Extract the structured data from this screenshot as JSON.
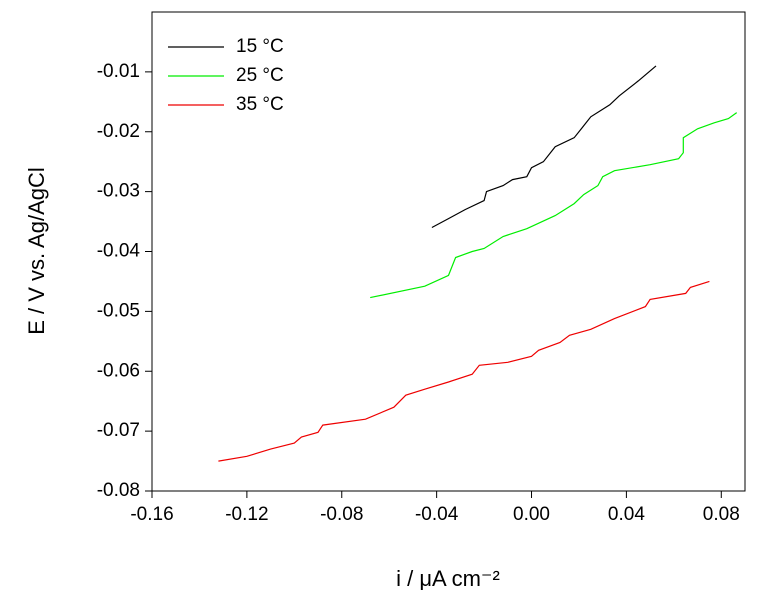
{
  "chart_data": {
    "type": "line",
    "x_label": "i / μA cm⁻²",
    "y_label": "E / V vs. Ag/AgCl",
    "xlim": [
      -0.16,
      0.09
    ],
    "ylim": [
      -0.08,
      0
    ],
    "xticks": [
      -0.16,
      -0.12,
      -0.08,
      -0.04,
      {
        "value": 0,
        "label": "0.00"
      },
      0.04,
      0.08
    ],
    "yticks": [
      -0.08,
      -0.07,
      -0.06,
      -0.05,
      -0.04,
      -0.03,
      -0.02,
      -0.01
    ],
    "legend": "top-left",
    "series": [
      {
        "name": "15 °C",
        "color": "#000000",
        "x": [
          -0.042,
          -0.035,
          -0.028,
          -0.02,
          -0.019,
          -0.012,
          -0.008,
          -0.002,
          0.0,
          0.005,
          0.01,
          0.018,
          0.022,
          0.025,
          0.033,
          0.037,
          0.045,
          0.0525
        ],
        "values": [
          -0.036,
          -0.0345,
          -0.033,
          -0.0315,
          -0.03,
          -0.029,
          -0.028,
          -0.0275,
          -0.026,
          -0.025,
          -0.0225,
          -0.021,
          -0.019,
          -0.0175,
          -0.0155,
          -0.014,
          -0.0115,
          -0.009
        ]
      },
      {
        "name": "25 °C",
        "color": "#00ee00",
        "x": [
          -0.068,
          -0.045,
          -0.035,
          -0.032,
          -0.025,
          -0.02,
          -0.012,
          -0.002,
          0.01,
          0.018,
          0.022,
          0.028,
          0.03,
          0.035,
          0.05,
          0.062,
          0.064,
          0.064,
          0.07,
          0.077,
          0.083,
          0.0865
        ],
        "values": [
          -0.0477,
          -0.0458,
          -0.044,
          -0.041,
          -0.04,
          -0.0395,
          -0.0375,
          -0.0362,
          -0.034,
          -0.032,
          -0.0305,
          -0.029,
          -0.0275,
          -0.0265,
          -0.0255,
          -0.0245,
          -0.0235,
          -0.021,
          -0.0195,
          -0.0185,
          -0.0178,
          -0.0168
        ]
      },
      {
        "name": "35 °C",
        "color": "#ee0000",
        "x": [
          -0.132,
          -0.12,
          -0.11,
          -0.1,
          -0.097,
          -0.09,
          -0.088,
          -0.07,
          -0.058,
          -0.053,
          -0.045,
          -0.035,
          -0.025,
          -0.022,
          -0.01,
          0.0,
          0.003,
          0.012,
          0.016,
          0.025,
          0.035,
          0.048,
          0.05,
          0.065,
          0.067,
          0.075
        ],
        "values": [
          -0.075,
          -0.0742,
          -0.073,
          -0.072,
          -0.071,
          -0.0702,
          -0.069,
          -0.068,
          -0.066,
          -0.064,
          -0.063,
          -0.0618,
          -0.0605,
          -0.059,
          -0.0585,
          -0.0575,
          -0.0565,
          -0.0552,
          -0.054,
          -0.053,
          -0.0512,
          -0.0492,
          -0.048,
          -0.047,
          -0.046,
          -0.045
        ]
      }
    ]
  }
}
